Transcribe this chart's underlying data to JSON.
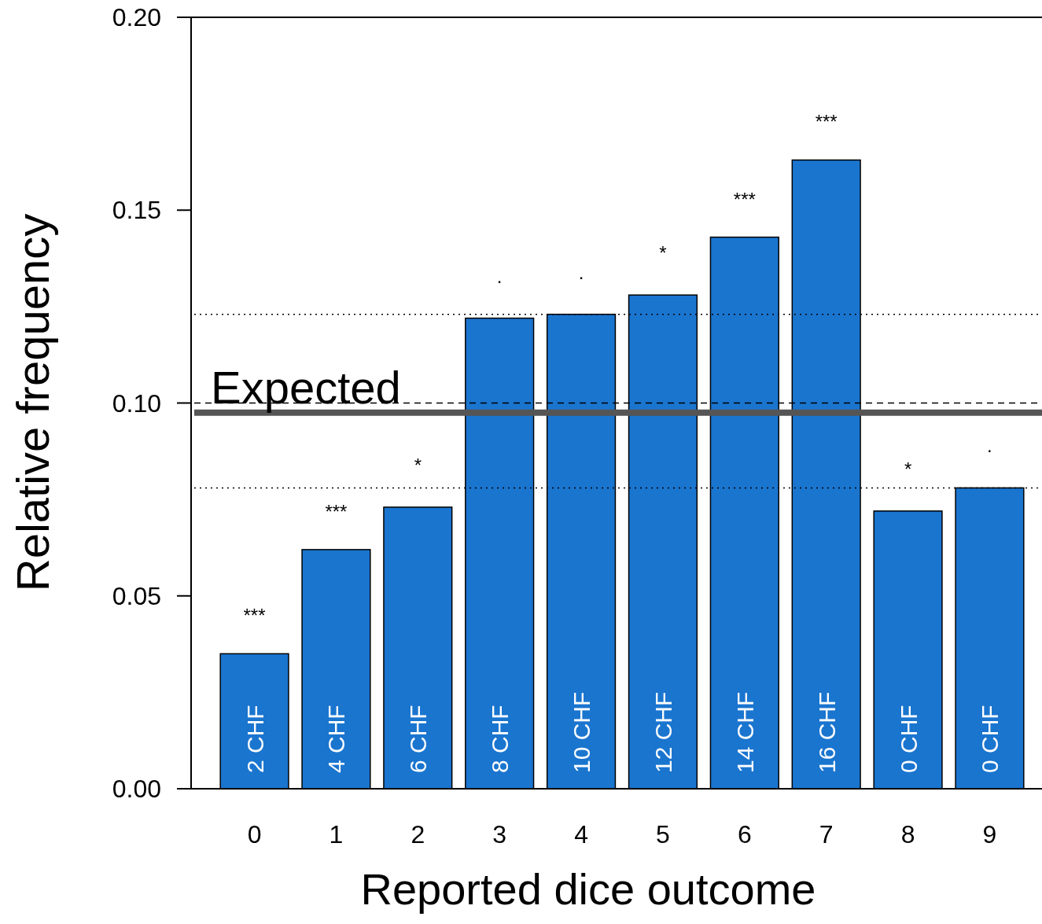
{
  "chart_data": {
    "type": "bar",
    "xlabel": "Reported dice outcome",
    "ylabel": "Relative frequency",
    "categories": [
      "0",
      "1",
      "2",
      "3",
      "4",
      "5",
      "6",
      "7",
      "8",
      "9"
    ],
    "values": [
      0.035,
      0.062,
      0.073,
      0.122,
      0.123,
      0.128,
      0.143,
      0.163,
      0.072,
      0.078
    ],
    "color": "#1a75cf",
    "ylim": [
      0,
      0.2
    ],
    "yticks": [
      {
        "value": 0,
        "label": "0.00"
      },
      {
        "value": 0.05,
        "label": "0.05"
      },
      {
        "value": 0.1,
        "label": "0.10"
      },
      {
        "value": 0.15,
        "label": "0.15"
      },
      {
        "value": 0.2,
        "label": "0.20"
      }
    ],
    "ref_lines": [
      {
        "axis": "y",
        "value": 0.0975,
        "label": "Expected",
        "color": "#555555",
        "line_style": "solid"
      },
      {
        "axis": "y",
        "value": 0.1,
        "label": null,
        "color": "#000000",
        "line_style": "dashed"
      },
      {
        "axis": "y",
        "value": 0.123,
        "label": null,
        "color": "#000000",
        "line_style": "dotted"
      },
      {
        "axis": "y",
        "value": 0.078,
        "label": null,
        "color": "#000000",
        "line_style": "dotted"
      }
    ],
    "annotations": [
      {
        "text": "***",
        "x": "0",
        "y": 0.035
      },
      {
        "text": "***",
        "x": "1",
        "y": 0.062
      },
      {
        "text": "*",
        "x": "2",
        "y": 0.073
      },
      {
        "text": ".",
        "x": "3",
        "y": 0.122
      },
      {
        "text": ".",
        "x": "4",
        "y": 0.123
      },
      {
        "text": "*",
        "x": "5",
        "y": 0.128
      },
      {
        "text": "***",
        "x": "6",
        "y": 0.143
      },
      {
        "text": "***",
        "x": "7",
        "y": 0.163
      },
      {
        "text": "*",
        "x": "8",
        "y": 0.072
      },
      {
        "text": ".",
        "x": "9",
        "y": 0.078
      },
      "2 CHF",
      "4 CHF",
      "6 CHF",
      "8 CHF",
      "10 CHF",
      "12 CHF",
      "14 CHF",
      "16 CHF",
      "0 CHF",
      "0 CHF"
    ]
  }
}
